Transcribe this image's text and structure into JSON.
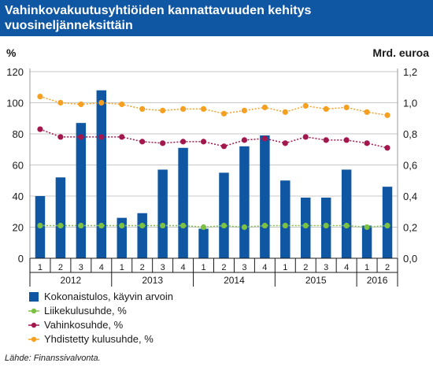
{
  "title": {
    "line1": "Vahinkovakuutusyhtiöiden kannattavuuden kehitys",
    "line2": "vuosineljänneksittäin"
  },
  "source": "Lähde: Finanssivalvonta.",
  "colors": {
    "title_bg": "#0f56a3",
    "bar": "#0f56a3",
    "liikekulu": "#7dc142",
    "vahinko": "#a3174f",
    "yhdistetty": "#f5a020"
  },
  "chart_data": {
    "type": "bar",
    "left_axis": {
      "unit": "%",
      "min": 0,
      "max": 120,
      "ticks": [
        "0",
        "20",
        "40",
        "60",
        "80",
        "100",
        "120"
      ]
    },
    "right_axis": {
      "unit": "Mrd. euroa",
      "min": 0,
      "max": 1.2,
      "ticks": [
        "0,0",
        "0,2",
        "0,4",
        "0,6",
        "0,8",
        "1,0",
        "1,2"
      ]
    },
    "grid": true,
    "legend_position": "bottom-left",
    "quarters": [
      "1",
      "2",
      "3",
      "4",
      "1",
      "2",
      "3",
      "4",
      "1",
      "2",
      "3",
      "4",
      "1",
      "2",
      "3",
      "4",
      "1",
      "2"
    ],
    "years": [
      {
        "label": "2012",
        "span": 4
      },
      {
        "label": "2013",
        "span": 4
      },
      {
        "label": "2014",
        "span": 4
      },
      {
        "label": "2015",
        "span": 4
      },
      {
        "label": "2016",
        "span": 2
      }
    ],
    "series": [
      {
        "name": "Kokonaistulos, käyvin arvoin",
        "type": "bar",
        "axis": "right",
        "values": [
          0.4,
          0.52,
          0.87,
          1.08,
          0.26,
          0.29,
          0.57,
          0.71,
          0.19,
          0.55,
          0.72,
          0.79,
          0.5,
          0.39,
          0.39,
          0.57,
          0.21,
          0.46
        ]
      },
      {
        "name": "Liikekulusuhde, %",
        "type": "line",
        "axis": "left",
        "values": [
          21,
          21,
          21,
          21,
          21,
          21,
          21,
          21,
          20,
          21,
          20,
          21,
          21,
          21,
          21,
          21,
          20,
          21
        ]
      },
      {
        "name": "Vahinkosuhde, %",
        "type": "line",
        "axis": "left",
        "values": [
          83,
          78,
          78,
          78,
          78,
          75,
          74,
          75,
          75,
          72,
          76,
          77,
          74,
          78,
          76,
          76,
          74,
          71
        ]
      },
      {
        "name": "Yhdistetty kulusuhde, %",
        "type": "line",
        "axis": "left",
        "values": [
          104,
          100,
          99,
          100,
          99,
          96,
          95,
          96,
          96,
          93,
          95,
          97,
          94,
          98,
          96,
          97,
          94,
          92
        ]
      }
    ]
  }
}
